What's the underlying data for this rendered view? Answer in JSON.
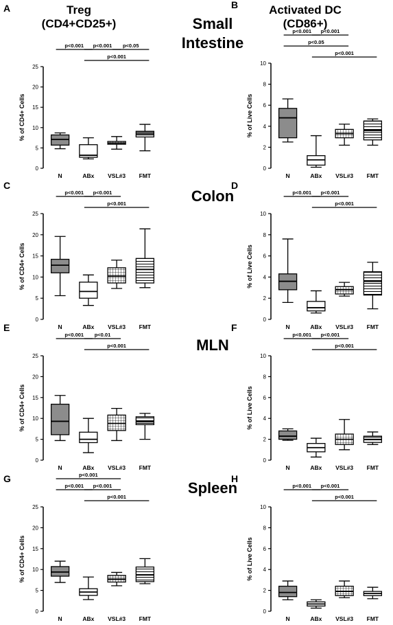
{
  "header": {
    "left_title": "Treg",
    "left_subtitle": "(CD4+CD25+)",
    "right_title": "Activated DC",
    "right_subtitle": "(CD86+)"
  },
  "tissues": [
    {
      "line1": "Small",
      "line2": "Intestine"
    },
    {
      "line1": "Colon"
    },
    {
      "line1": "MLN"
    },
    {
      "line1": "Spleen"
    }
  ],
  "chart_data": [
    {
      "panel": "A",
      "type": "box",
      "ylabel": "% of CD4+ Cells",
      "ylim": [
        0,
        25
      ],
      "yticks": [
        0,
        5,
        10,
        15,
        20,
        25
      ],
      "categories": [
        "N",
        "ABx",
        "VSL#3",
        "FMT"
      ],
      "boxes": [
        {
          "min": 4.8,
          "q1": 5.7,
          "median": 7.1,
          "q3": 8.2,
          "max": 8.7
        },
        {
          "min": 2.3,
          "q1": 2.7,
          "median": 3.2,
          "q3": 5.8,
          "max": 7.5
        },
        {
          "min": 4.7,
          "q1": 5.9,
          "median": 6.2,
          "q3": 6.6,
          "max": 7.8
        },
        {
          "min": 4.3,
          "q1": 7.7,
          "median": 8.5,
          "q3": 9.1,
          "max": 10.8
        }
      ],
      "brackets": [
        {
          "from": 0,
          "to": 1,
          "label": "p<0.001",
          "level": 2
        },
        {
          "from": 1,
          "to": 2,
          "label": "p<0.001",
          "level": 2
        },
        {
          "from": 2,
          "to": 3,
          "label": "p<0.05",
          "level": 2
        },
        {
          "from": 1,
          "to": 3,
          "label": "p<0.001",
          "level": 1
        }
      ]
    },
    {
      "panel": "B",
      "type": "box",
      "ylabel": "% of Live Cells",
      "ylim": [
        0,
        10
      ],
      "yticks": [
        0,
        2,
        4,
        6,
        8,
        10
      ],
      "categories": [
        "N",
        "ABx",
        "VSL#3",
        "FMT"
      ],
      "boxes": [
        {
          "min": 2.5,
          "q1": 2.9,
          "median": 4.8,
          "q3": 5.7,
          "max": 6.6
        },
        {
          "min": 0.1,
          "q1": 0.3,
          "median": 0.8,
          "q3": 1.2,
          "max": 3.1
        },
        {
          "min": 2.2,
          "q1": 2.9,
          "median": 3.3,
          "q3": 3.7,
          "max": 4.2
        },
        {
          "min": 2.2,
          "q1": 2.7,
          "median": 3.6,
          "q3": 4.5,
          "max": 4.7
        }
      ],
      "brackets": [
        {
          "from": 0,
          "to": 1,
          "label": "p<0.001",
          "level": 3
        },
        {
          "from": 1,
          "to": 2,
          "label": "p<0.001",
          "level": 3
        },
        {
          "from": 0,
          "to": 2,
          "label": "p<0.05",
          "level": 2
        },
        {
          "from": 1,
          "to": 3,
          "label": "p<0.001",
          "level": 1
        }
      ]
    },
    {
      "panel": "C",
      "type": "box",
      "ylabel": "% of CD4+ Cells",
      "ylim": [
        0,
        25
      ],
      "yticks": [
        0,
        5,
        10,
        15,
        20,
        25
      ],
      "categories": [
        "N",
        "ABx",
        "VSL#3",
        "FMT"
      ],
      "boxes": [
        {
          "min": 5.6,
          "q1": 11.0,
          "median": 12.8,
          "q3": 14.2,
          "max": 19.6
        },
        {
          "min": 3.3,
          "q1": 5.0,
          "median": 6.6,
          "q3": 8.8,
          "max": 10.5
        },
        {
          "min": 7.3,
          "q1": 8.6,
          "median": 10.2,
          "q3": 12.2,
          "max": 14.0
        },
        {
          "min": 7.5,
          "q1": 8.6,
          "median": 11.8,
          "q3": 14.4,
          "max": 21.4
        }
      ],
      "brackets": [
        {
          "from": 0,
          "to": 1,
          "label": "p<0.001",
          "level": 2
        },
        {
          "from": 1,
          "to": 2,
          "label": "p<0.001",
          "level": 2
        },
        {
          "from": 1,
          "to": 3,
          "label": "p<0.001",
          "level": 1
        }
      ]
    },
    {
      "panel": "D",
      "type": "box",
      "ylabel": "% of Live Cells",
      "ylim": [
        0,
        10
      ],
      "yticks": [
        0,
        2,
        4,
        6,
        8,
        10
      ],
      "categories": [
        "N",
        "ABx",
        "VSL#3",
        "FMT"
      ],
      "boxes": [
        {
          "min": 1.6,
          "q1": 2.8,
          "median": 3.6,
          "q3": 4.3,
          "max": 7.6
        },
        {
          "min": 0.6,
          "q1": 0.8,
          "median": 1.1,
          "q3": 1.7,
          "max": 2.7
        },
        {
          "min": 2.2,
          "q1": 2.4,
          "median": 2.8,
          "q3": 3.1,
          "max": 3.5
        },
        {
          "min": 1.0,
          "q1": 2.3,
          "median": 3.6,
          "q3": 4.5,
          "max": 5.4
        }
      ],
      "brackets": [
        {
          "from": 0,
          "to": 1,
          "label": "p<0.001",
          "level": 2
        },
        {
          "from": 1,
          "to": 2,
          "label": "p<0.001",
          "level": 2
        },
        {
          "from": 1,
          "to": 3,
          "label": "p<0.001",
          "level": 1
        }
      ]
    },
    {
      "panel": "E",
      "type": "box",
      "ylabel": "% of CD4+ Cells",
      "ylim": [
        0,
        25
      ],
      "yticks": [
        0,
        5,
        10,
        15,
        20,
        25
      ],
      "categories": [
        "N",
        "ABx",
        "VSL#3",
        "FMT"
      ],
      "boxes": [
        {
          "min": 4.7,
          "q1": 6.1,
          "median": 9.3,
          "q3": 13.4,
          "max": 15.5
        },
        {
          "min": 1.8,
          "q1": 4.2,
          "median": 5.0,
          "q3": 6.7,
          "max": 10.0
        },
        {
          "min": 4.7,
          "q1": 7.1,
          "median": 8.8,
          "q3": 10.8,
          "max": 12.4
        },
        {
          "min": 5.0,
          "q1": 8.5,
          "median": 9.2,
          "q3": 10.4,
          "max": 11.2
        }
      ],
      "brackets": [
        {
          "from": 0,
          "to": 1,
          "label": "p<0.001",
          "level": 2
        },
        {
          "from": 1,
          "to": 2,
          "label": "p<0.01",
          "level": 2
        },
        {
          "from": 1,
          "to": 3,
          "label": "p<0.001",
          "level": 1
        }
      ]
    },
    {
      "panel": "F",
      "type": "box",
      "ylabel": "% of Live Cells",
      "ylim": [
        0,
        10
      ],
      "yticks": [
        0,
        2,
        4,
        6,
        8,
        10
      ],
      "categories": [
        "N",
        "ABx",
        "VSL#3",
        "FMT"
      ],
      "boxes": [
        {
          "min": 1.9,
          "q1": 2.0,
          "median": 2.3,
          "q3": 2.8,
          "max": 3.0
        },
        {
          "min": 0.3,
          "q1": 0.8,
          "median": 1.2,
          "q3": 1.6,
          "max": 2.1
        },
        {
          "min": 1.0,
          "q1": 1.5,
          "median": 2.0,
          "q3": 2.5,
          "max": 3.9
        },
        {
          "min": 1.5,
          "q1": 1.7,
          "median": 2.0,
          "q3": 2.3,
          "max": 2.7
        }
      ],
      "brackets": [
        {
          "from": 0,
          "to": 1,
          "label": "p<0.001",
          "level": 2
        },
        {
          "from": 1,
          "to": 2,
          "label": "p<0.001",
          "level": 2
        },
        {
          "from": 1,
          "to": 3,
          "label": "p<0.001",
          "level": 1
        }
      ]
    },
    {
      "panel": "G",
      "type": "box",
      "ylabel": "% of CD4+ Cells",
      "ylim": [
        0,
        25
      ],
      "yticks": [
        0,
        5,
        10,
        15,
        20,
        25
      ],
      "categories": [
        "N",
        "ABx",
        "VSL#3",
        "FMT"
      ],
      "boxes": [
        {
          "min": 6.9,
          "q1": 8.4,
          "median": 9.4,
          "q3": 10.7,
          "max": 12.0
        },
        {
          "min": 2.8,
          "q1": 3.8,
          "median": 4.6,
          "q3": 5.4,
          "max": 8.2
        },
        {
          "min": 6.1,
          "q1": 7.0,
          "median": 7.7,
          "q3": 8.6,
          "max": 9.3
        },
        {
          "min": 6.6,
          "q1": 7.1,
          "median": 8.7,
          "q3": 10.6,
          "max": 12.6
        }
      ],
      "brackets": [
        {
          "from": 0,
          "to": 1,
          "label": "p<0.001",
          "level": 2
        },
        {
          "from": 1,
          "to": 2,
          "label": "p<0.001",
          "level": 2
        },
        {
          "from": 1,
          "to": 3,
          "label": "p<0.001",
          "level": 1
        },
        {
          "from": 0,
          "to": 2,
          "label": "p<0.001",
          "level": 3
        }
      ]
    },
    {
      "panel": "H",
      "type": "box",
      "ylabel": "% of Live Cells",
      "ylim": [
        0,
        10
      ],
      "yticks": [
        0,
        2,
        4,
        6,
        8,
        10
      ],
      "categories": [
        "N",
        "ABx",
        "VSL#3",
        "FMT"
      ],
      "boxes": [
        {
          "min": 1.1,
          "q1": 1.4,
          "median": 1.8,
          "q3": 2.4,
          "max": 2.9
        },
        {
          "min": 0.3,
          "q1": 0.5,
          "median": 0.7,
          "q3": 0.9,
          "max": 1.1
        },
        {
          "min": 1.3,
          "q1": 1.5,
          "median": 1.9,
          "q3": 2.4,
          "max": 2.9
        },
        {
          "min": 1.2,
          "q1": 1.5,
          "median": 1.7,
          "q3": 1.9,
          "max": 2.3
        }
      ],
      "brackets": [
        {
          "from": 0,
          "to": 1,
          "label": "p<0.001",
          "level": 2
        },
        {
          "from": 1,
          "to": 2,
          "label": "p<0.001",
          "level": 2
        },
        {
          "from": 1,
          "to": 3,
          "label": "p<0.001",
          "level": 1
        }
      ]
    }
  ],
  "styles": {
    "box_fills": [
      "gray",
      "white",
      "grid",
      "stripes"
    ],
    "gray": "#8c8c8c",
    "line": "#000000"
  }
}
